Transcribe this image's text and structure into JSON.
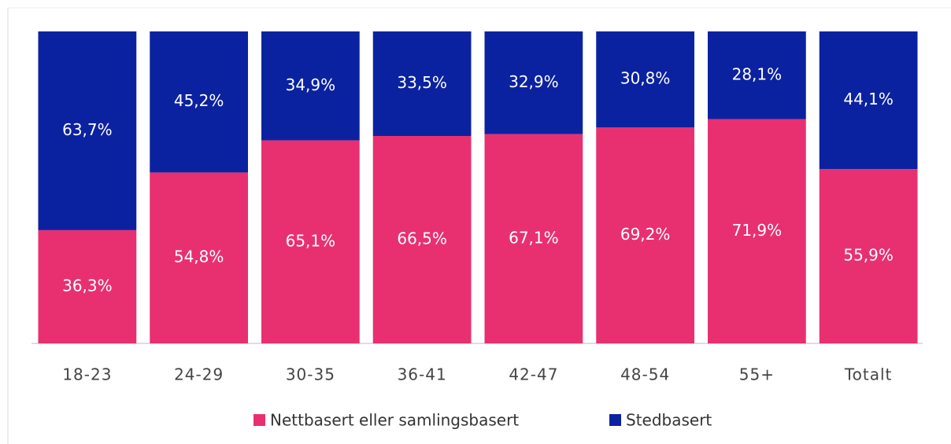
{
  "chart_data": {
    "type": "stacked_bar",
    "categories": [
      "18-23",
      "24-29",
      "30-35",
      "36-41",
      "42-47",
      "48-54",
      "55+",
      "Totalt"
    ],
    "series": [
      {
        "name": "Nettbasert eller samlingsbasert",
        "color": "#e83070",
        "values": [
          36.3,
          54.8,
          65.1,
          66.5,
          67.1,
          69.2,
          71.9,
          55.9
        ],
        "value_labels": [
          "36,3%",
          "54,8%",
          "65,1%",
          "66,5%",
          "67,1%",
          "69,2%",
          "71,9%",
          "55,9%"
        ]
      },
      {
        "name": "Stedbasert",
        "color": "#0b22a0",
        "values": [
          63.7,
          45.2,
          34.9,
          33.5,
          32.9,
          30.8,
          28.1,
          44.1
        ],
        "value_labels": [
          "63,7%",
          "45,2%",
          "34,9%",
          "33,5%",
          "32,9%",
          "30,8%",
          "28,1%",
          "44,1%"
        ]
      }
    ],
    "ylim": [
      0,
      100
    ]
  }
}
